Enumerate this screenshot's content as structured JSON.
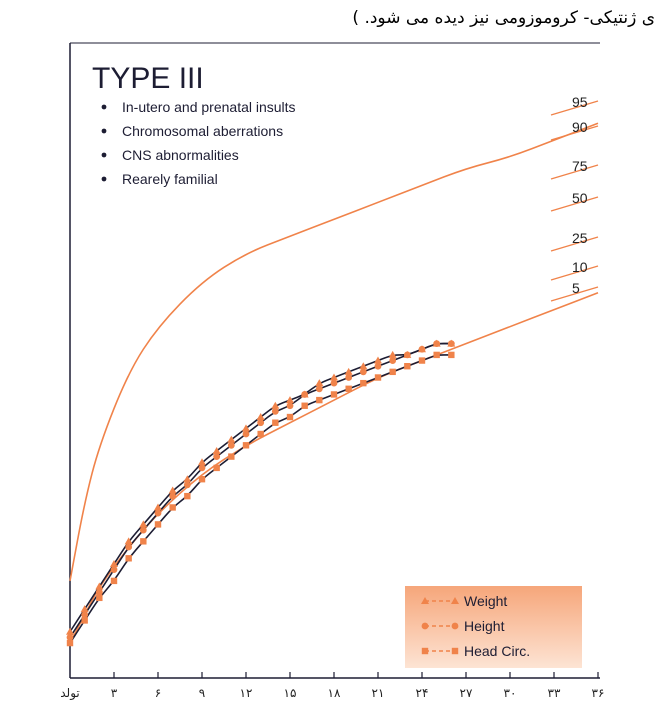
{
  "caption": "ی ژنتیکی- کروموزومی نیز دیده می شود. )",
  "chart_data": {
    "type": "line",
    "title": "TYPE III",
    "notes": [
      "In-utero and prenatal insults",
      "Chromosomal aberrations",
      "CNS abnormalities",
      "Rearely familial"
    ],
    "x_ticks": [
      "تولد",
      "۳",
      "۶",
      "۹",
      "۱۲",
      "۱۵",
      "۱۸",
      "۲۱",
      "۲۴",
      "۲۷",
      "۳۰",
      "۳۳",
      "۳۶"
    ],
    "xlim": [
      0,
      36
    ],
    "ylim": [
      0,
      100
    ],
    "grid": false,
    "percentile_labels": [
      "95",
      "90",
      "75",
      "50",
      "25",
      "10",
      "5"
    ],
    "percentile_curves": [
      {
        "name": "95",
        "x": [
          0,
          1,
          2,
          4,
          6,
          9,
          12,
          15,
          18,
          21,
          24,
          27,
          30,
          33,
          36
        ],
        "y": [
          14,
          28,
          38,
          51,
          59,
          67,
          72,
          75,
          78,
          81,
          84,
          87,
          89,
          92,
          95
        ]
      },
      {
        "name": "5",
        "x": [
          0,
          1,
          2,
          4,
          6,
          9,
          12,
          15,
          18,
          21,
          24,
          27,
          30,
          33,
          36
        ],
        "y": [
          3,
          8,
          13,
          20,
          26,
          33,
          38,
          42,
          46,
          50,
          53,
          56,
          59,
          62,
          65
        ]
      }
    ],
    "series": [
      {
        "name": "Weight",
        "marker": "triangle",
        "x": [
          0,
          1,
          2,
          3,
          4,
          5,
          6,
          7,
          8,
          9,
          10,
          11,
          12,
          13,
          14,
          15,
          16,
          17,
          18,
          19,
          20,
          21,
          22,
          23,
          24,
          25,
          26
        ],
        "y": [
          5,
          9,
          13,
          17,
          21,
          24,
          27,
          30,
          32,
          35,
          37,
          39,
          41,
          43,
          45,
          46,
          47,
          49,
          50,
          51,
          52,
          53,
          54,
          54,
          55,
          56,
          56
        ]
      },
      {
        "name": "Height",
        "marker": "circle",
        "x": [
          0,
          1,
          2,
          3,
          4,
          5,
          6,
          7,
          8,
          9,
          10,
          11,
          12,
          13,
          14,
          15,
          16,
          17,
          18,
          19,
          20,
          21,
          22,
          23,
          24,
          25,
          26
        ],
        "y": [
          4,
          8,
          12,
          16,
          20,
          23,
          26,
          29,
          31,
          34,
          36,
          38,
          40,
          42,
          44,
          45,
          47,
          48,
          49,
          50,
          51,
          52,
          53,
          54,
          55,
          56,
          56
        ]
      },
      {
        "name": "Head Circ.",
        "marker": "square",
        "x": [
          0,
          1,
          2,
          3,
          4,
          5,
          6,
          7,
          8,
          9,
          10,
          11,
          12,
          13,
          14,
          15,
          16,
          17,
          18,
          19,
          20,
          21,
          22,
          23,
          24,
          25,
          26
        ],
        "y": [
          3,
          7,
          11,
          14,
          18,
          21,
          24,
          27,
          29,
          32,
          34,
          36,
          38,
          40,
          42,
          43,
          45,
          46,
          47,
          48,
          49,
          50,
          51,
          52,
          53,
          54,
          54
        ]
      }
    ],
    "legend_position": "bottom-right"
  },
  "colors": {
    "orange": "#f0834a",
    "dark": "#1d1d33",
    "legend_top": "#f6a67a",
    "legend_bottom": "#fde4d4"
  }
}
